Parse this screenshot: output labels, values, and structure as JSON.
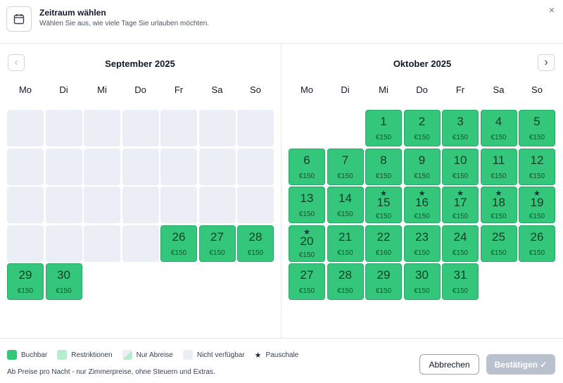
{
  "header": {
    "title": "Zeitraum wählen",
    "subtitle": "Wählen Sie aus, wie viele Tage Sie urlauben möchten.",
    "icon": "calendar-icon",
    "close_label": "×"
  },
  "nav": {
    "prev_label": "‹",
    "next_label": "›"
  },
  "months": [
    {
      "title": "September 2025",
      "weekdays": [
        "Mo",
        "Di",
        "Mi",
        "Do",
        "Fr",
        "Sa",
        "So"
      ],
      "start_offset": 0,
      "cells": [
        {
          "day": "",
          "status": "nicht-verfuegbar"
        },
        {
          "day": "",
          "status": "nicht-verfuegbar"
        },
        {
          "day": "",
          "status": "nicht-verfuegbar"
        },
        {
          "day": "",
          "status": "nicht-verfuegbar"
        },
        {
          "day": "",
          "status": "nicht-verfuegbar"
        },
        {
          "day": "",
          "status": "nicht-verfuegbar"
        },
        {
          "day": "",
          "status": "nicht-verfuegbar"
        },
        {
          "day": "",
          "status": "nicht-verfuegbar"
        },
        {
          "day": "",
          "status": "nicht-verfuegbar"
        },
        {
          "day": "",
          "status": "nicht-verfuegbar"
        },
        {
          "day": "",
          "status": "nicht-verfuegbar"
        },
        {
          "day": "",
          "status": "nicht-verfuegbar"
        },
        {
          "day": "",
          "status": "nicht-verfuegbar"
        },
        {
          "day": "",
          "status": "nicht-verfuegbar"
        },
        {
          "day": "",
          "status": "nicht-verfuegbar"
        },
        {
          "day": "",
          "status": "nicht-verfuegbar"
        },
        {
          "day": "",
          "status": "nicht-verfuegbar"
        },
        {
          "day": "",
          "status": "nicht-verfuegbar"
        },
        {
          "day": "",
          "status": "nicht-verfuegbar"
        },
        {
          "day": "",
          "status": "nicht-verfuegbar"
        },
        {
          "day": "",
          "status": "nicht-verfuegbar"
        },
        {
          "day": "",
          "status": "nicht-verfuegbar"
        },
        {
          "day": "",
          "status": "nicht-verfuegbar"
        },
        {
          "day": "",
          "status": "nicht-verfuegbar"
        },
        {
          "day": "",
          "status": "nicht-verfuegbar"
        },
        {
          "day": "26",
          "price": "€150",
          "status": "buchbar"
        },
        {
          "day": "27",
          "price": "€150",
          "status": "buchbar"
        },
        {
          "day": "28",
          "price": "€150",
          "status": "buchbar"
        },
        {
          "day": "29",
          "price": "€150",
          "status": "buchbar"
        },
        {
          "day": "30",
          "price": "€150",
          "status": "buchbar"
        }
      ]
    },
    {
      "title": "Oktober 2025",
      "weekdays": [
        "Mo",
        "Di",
        "Mi",
        "Do",
        "Fr",
        "Sa",
        "So"
      ],
      "start_offset": 2,
      "cells": [
        {
          "day": "1",
          "price": "€150",
          "status": "buchbar"
        },
        {
          "day": "2",
          "price": "€150",
          "status": "buchbar"
        },
        {
          "day": "3",
          "price": "€150",
          "status": "buchbar"
        },
        {
          "day": "4",
          "price": "€150",
          "status": "buchbar"
        },
        {
          "day": "5",
          "price": "€150",
          "status": "buchbar"
        },
        {
          "day": "6",
          "price": "€150",
          "status": "buchbar"
        },
        {
          "day": "7",
          "price": "€150",
          "status": "buchbar"
        },
        {
          "day": "8",
          "price": "€150",
          "status": "buchbar"
        },
        {
          "day": "9",
          "price": "€150",
          "status": "buchbar"
        },
        {
          "day": "10",
          "price": "€150",
          "status": "buchbar"
        },
        {
          "day": "11",
          "price": "€150",
          "status": "buchbar"
        },
        {
          "day": "12",
          "price": "€150",
          "status": "buchbar"
        },
        {
          "day": "13",
          "price": "€150",
          "status": "buchbar"
        },
        {
          "day": "14",
          "price": "€150",
          "status": "buchbar"
        },
        {
          "day": "15",
          "price": "€150",
          "status": "buchbar",
          "pauschale": true
        },
        {
          "day": "16",
          "price": "€150",
          "status": "buchbar",
          "pauschale": true
        },
        {
          "day": "17",
          "price": "€150",
          "status": "buchbar",
          "pauschale": true
        },
        {
          "day": "18",
          "price": "€150",
          "status": "buchbar",
          "pauschale": true
        },
        {
          "day": "19",
          "price": "€150",
          "status": "buchbar",
          "pauschale": true
        },
        {
          "day": "20",
          "price": "€150",
          "status": "buchbar",
          "pauschale": true
        },
        {
          "day": "21",
          "price": "€150",
          "status": "buchbar"
        },
        {
          "day": "22",
          "price": "€160",
          "status": "buchbar"
        },
        {
          "day": "23",
          "price": "€150",
          "status": "buchbar"
        },
        {
          "day": "24",
          "price": "€150",
          "status": "buchbar"
        },
        {
          "day": "25",
          "price": "€150",
          "status": "buchbar"
        },
        {
          "day": "26",
          "price": "€150",
          "status": "buchbar"
        },
        {
          "day": "27",
          "price": "€150",
          "status": "buchbar"
        },
        {
          "day": "28",
          "price": "€150",
          "status": "buchbar"
        },
        {
          "day": "29",
          "price": "€150",
          "status": "buchbar"
        },
        {
          "day": "30",
          "price": "€150",
          "status": "buchbar"
        },
        {
          "day": "31",
          "price": "€150",
          "status": "buchbar"
        }
      ]
    }
  ],
  "legend": {
    "buchbar": "Buchbar",
    "restriktionen": "Restriktionen",
    "nur_abreise": "Nur Abreise",
    "nicht_verfuegbar": "Nicht verfügbar",
    "pauschale": "Pauschale"
  },
  "note": "Ab Preise pro Nacht - nur Zimmerpreise, ohne Steuern und Extras.",
  "buttons": {
    "cancel": "Abbrechen",
    "confirm": "Bestätigen ✓"
  },
  "colors": {
    "buchbar": "#34c77b",
    "restriktionen": "#b7ecd0",
    "nicht_verfuegbar": "#eceef5",
    "confirm_disabled": "#b9c1cf"
  },
  "star_glyph": "★"
}
